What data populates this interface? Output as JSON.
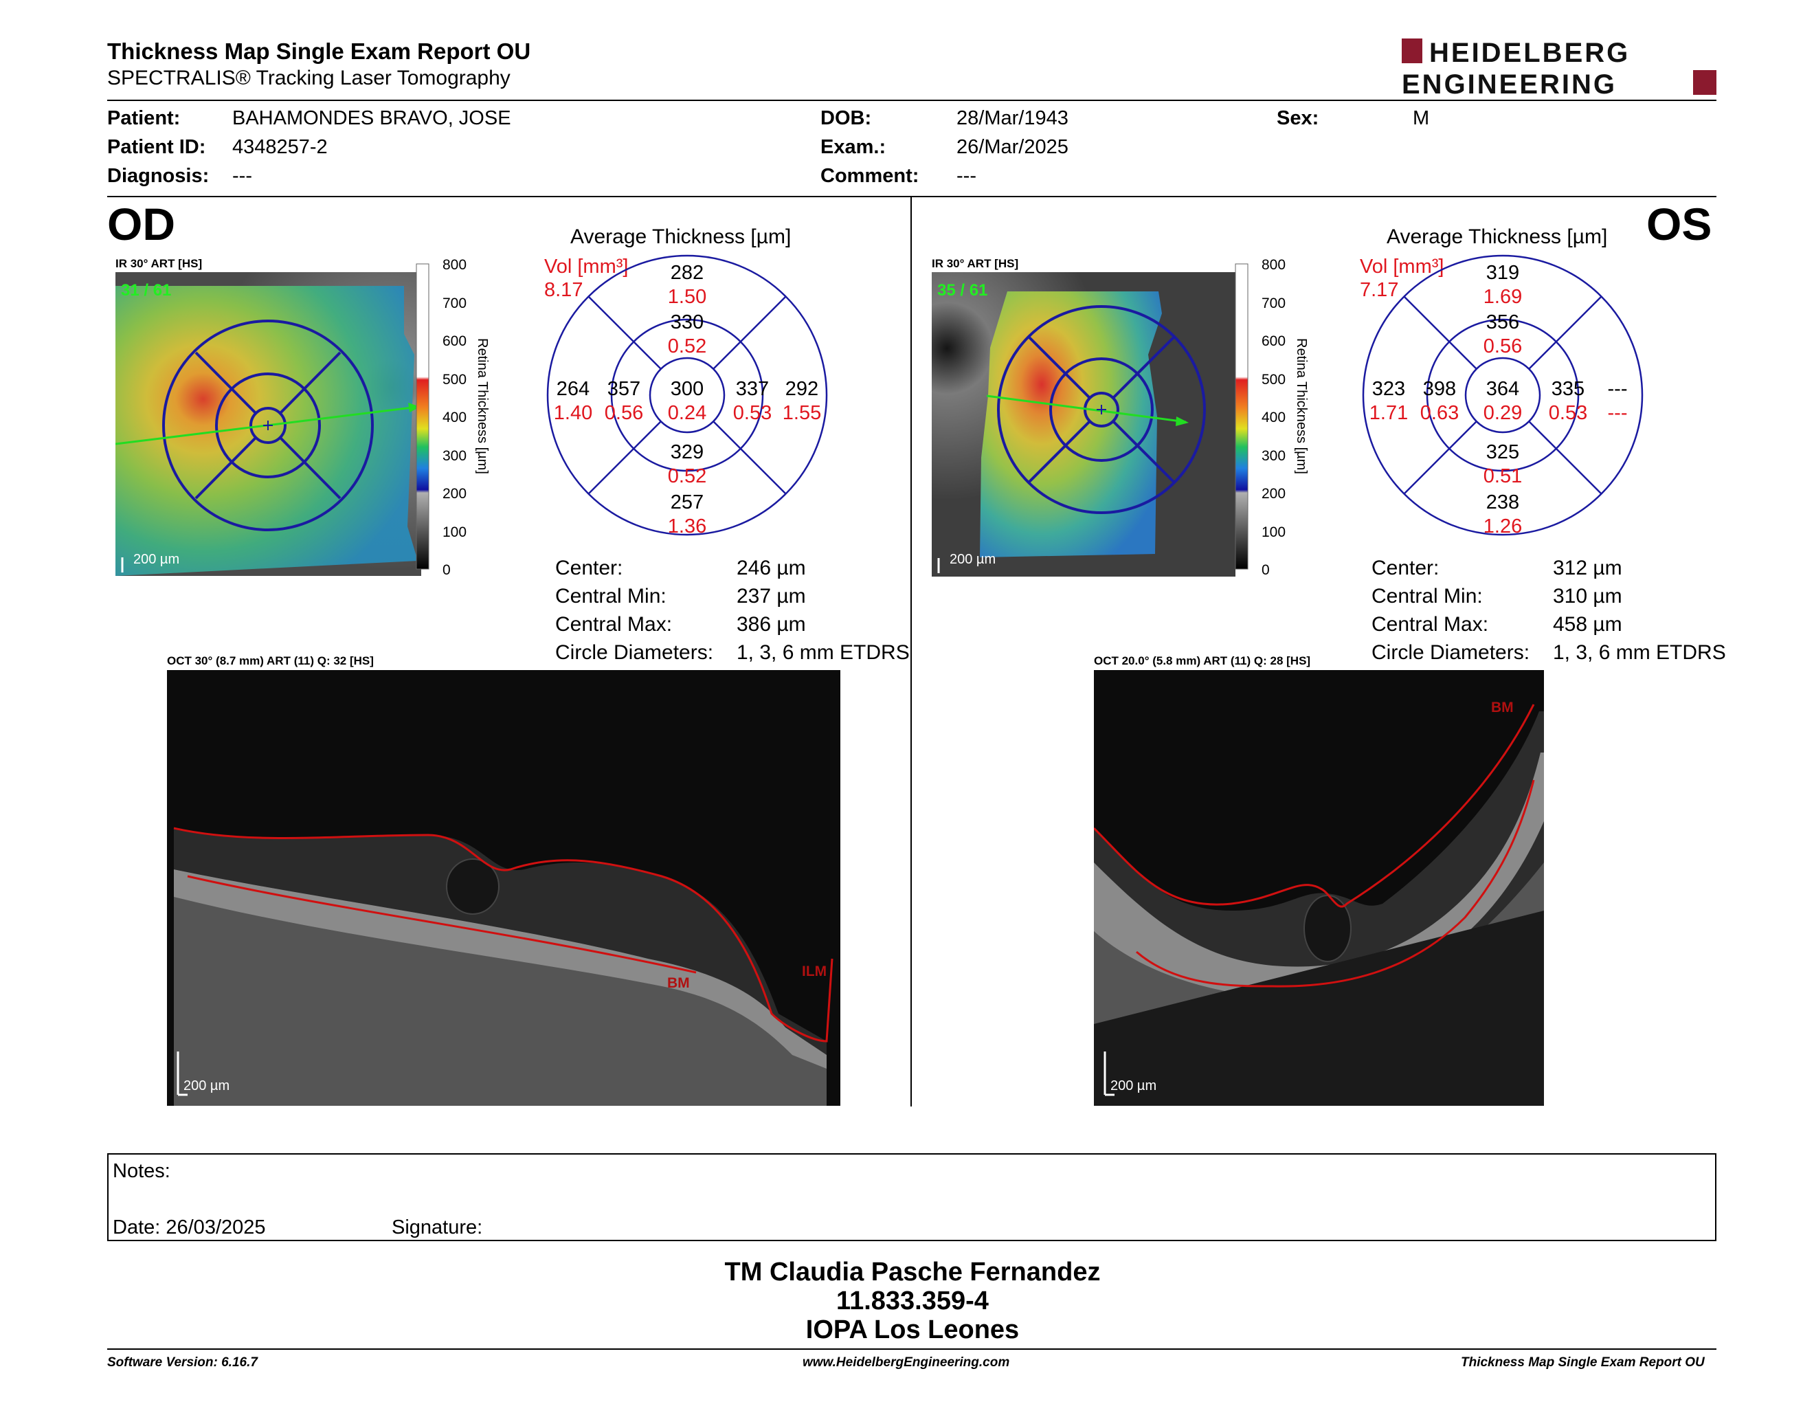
{
  "header": {
    "title": "Thickness Map Single Exam Report OU",
    "subtitle": "SPECTRALIS® Tracking Laser Tomography",
    "logo_line1": "HEIDELBERG",
    "logo_line2": "ENGINEERING"
  },
  "patient": {
    "patient_label": "Patient:",
    "patient_value": "BAHAMONDES BRAVO, JOSE",
    "id_label": "Patient ID:",
    "id_value": "4348257-2",
    "diagnosis_label": "Diagnosis:",
    "diagnosis_value": "---",
    "dob_label": "DOB:",
    "dob_value": "28/Mar/1943",
    "exam_label": "Exam.:",
    "exam_value": "26/Mar/2025",
    "comment_label": "Comment:",
    "comment_value": "---",
    "sex_label": "Sex:",
    "sex_value": "M"
  },
  "od": {
    "eye": "OD",
    "fundus_label": "IR 30° ART [HS]",
    "frames": "31 / 61",
    "scale": "200 µm",
    "colorbar_ticks": [
      "800",
      "700",
      "600",
      "500",
      "400",
      "300",
      "200",
      "100",
      "0"
    ],
    "colorbar_title": "Retina Thickness [µm]",
    "avg_title": "Average Thickness [µm]",
    "vol_label": "Vol [mm³]",
    "vol_total": "8.17",
    "sectors": {
      "sup_outer": [
        "282",
        "1.50"
      ],
      "sup_inner": [
        "330",
        "0.52"
      ],
      "center": [
        "300",
        "0.24"
      ],
      "nasal_inner": [
        "357",
        "0.56"
      ],
      "nasal_outer": [
        "264",
        "1.40"
      ],
      "temp_inner": [
        "337",
        "0.53"
      ],
      "temp_outer": [
        "292",
        "1.55"
      ],
      "inf_inner": [
        "329",
        "0.52"
      ],
      "inf_outer": [
        "257",
        "1.36"
      ]
    },
    "stats": [
      {
        "label": "Center:",
        "value": "246 µm"
      },
      {
        "label": "Central Min:",
        "value": "237 µm"
      },
      {
        "label": "Central Max:",
        "value": "386 µm"
      },
      {
        "label": "Circle Diameters:",
        "value": "1, 3, 6 mm ETDRS"
      }
    ],
    "oct_label": "OCT 30° (8.7 mm) ART (11) Q: 32 [HS]",
    "oct_scale": "200 µm",
    "oct_tags": [
      "BM",
      "ILM"
    ]
  },
  "os": {
    "eye": "OS",
    "fundus_label": "IR 30° ART [HS]",
    "frames": "35 / 61",
    "scale": "200 µm",
    "colorbar_ticks": [
      "800",
      "700",
      "600",
      "500",
      "400",
      "300",
      "200",
      "100",
      "0"
    ],
    "colorbar_title": "Retina Thickness [µm]",
    "avg_title": "Average Thickness [µm]",
    "vol_label": "Vol [mm³]",
    "vol_total": "7.17",
    "sectors": {
      "sup_outer": [
        "319",
        "1.69"
      ],
      "sup_inner": [
        "356",
        "0.56"
      ],
      "center": [
        "364",
        "0.29"
      ],
      "nasal_inner": [
        "398",
        "0.63"
      ],
      "nasal_outer": [
        "323",
        "1.71"
      ],
      "temp_inner": [
        "335",
        "0.53"
      ],
      "temp_outer": [
        "---",
        "---"
      ],
      "inf_inner": [
        "325",
        "0.51"
      ],
      "inf_outer": [
        "238",
        "1.26"
      ]
    },
    "stats": [
      {
        "label": "Center:",
        "value": "312 µm"
      },
      {
        "label": "Central Min:",
        "value": "310 µm"
      },
      {
        "label": "Central Max:",
        "value": "458 µm"
      },
      {
        "label": "Circle Diameters:",
        "value": "1, 3, 6 mm ETDRS"
      }
    ],
    "oct_label": "OCT 20.0° (5.8 mm) ART (11) Q: 28 [HS]",
    "oct_scale": "200 µm",
    "oct_tags": [
      "BM"
    ]
  },
  "notes": {
    "notes_label": "Notes:",
    "date_label": "Date: 26/03/2025",
    "signature_label": "Signature:"
  },
  "signer": {
    "name": "TM Claudia Pasche Fernandez",
    "rut": "11.833.359-4",
    "clinic": "IOPA Los Leones"
  },
  "footer": {
    "version": "Software Version: 6.16.7",
    "url": "www.HeidelbergEngineering.com",
    "report": "Thickness Map Single Exam Report OU"
  }
}
